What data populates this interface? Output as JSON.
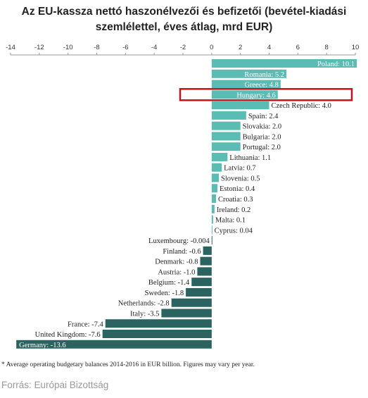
{
  "title_line1": "Az EU-kassza nettó haszonélvezői és befizetői (bevétel-kiadási",
  "title_line2": "szemlélettel, éves átlag, mrd EUR)",
  "footnote": "* Average operating budgetary balances 2014-2016 in EUR billion. Figures may vary per year.",
  "source": "Forrás: Európai Bizottság",
  "colors": {
    "positive": "#5bbcb3",
    "negative": "#2a635f",
    "highlight": "#c0141c"
  },
  "chart_data": {
    "type": "bar",
    "orientation": "horizontal",
    "xlim": [
      -14,
      10
    ],
    "xticks": [
      -14,
      -12,
      -10,
      -8,
      -6,
      -4,
      -2,
      0,
      2,
      4,
      6,
      8,
      10
    ],
    "highlight": "Hungary",
    "categories": [
      "Poland",
      "Romania",
      "Greece",
      "Hungary",
      "Czech Republic",
      "Spain",
      "Slovakia",
      "Bulgaria",
      "Portugal",
      "Lithuania",
      "Latvia",
      "Slovenia",
      "Estonia",
      "Croatia",
      "Ireland",
      "Malta",
      "Cyprus",
      "Luxembourg",
      "Finland",
      "Denmark",
      "Austria",
      "Belgium",
      "Sweden",
      "Netherlands",
      "Italy",
      "France",
      "United Kingdom",
      "Germany"
    ],
    "values": [
      10.1,
      5.2,
      4.8,
      4.6,
      4.0,
      2.4,
      2.0,
      2.0,
      2.0,
      1.1,
      0.7,
      0.5,
      0.4,
      0.3,
      0.2,
      0.1,
      0.04,
      -0.004,
      -0.6,
      -0.8,
      -1.0,
      -1.4,
      -1.8,
      -2.8,
      -3.5,
      -7.4,
      -7.6,
      -13.6
    ],
    "value_labels": [
      "10.1",
      "5.2",
      "4.8",
      "4.6",
      "4.0",
      "2.4",
      "2.0",
      "2.0",
      "2.0",
      "1.1",
      "0.7",
      "0.5",
      "0.4",
      "0.3",
      "0.2",
      "0.1",
      "0.04",
      "-0.004",
      "-0.6",
      "-0.8",
      "-1.0",
      "-1.4",
      "-1.8",
      "-2.8",
      "-3.5",
      "-7.4",
      "-7.6",
      "-13.6"
    ]
  }
}
